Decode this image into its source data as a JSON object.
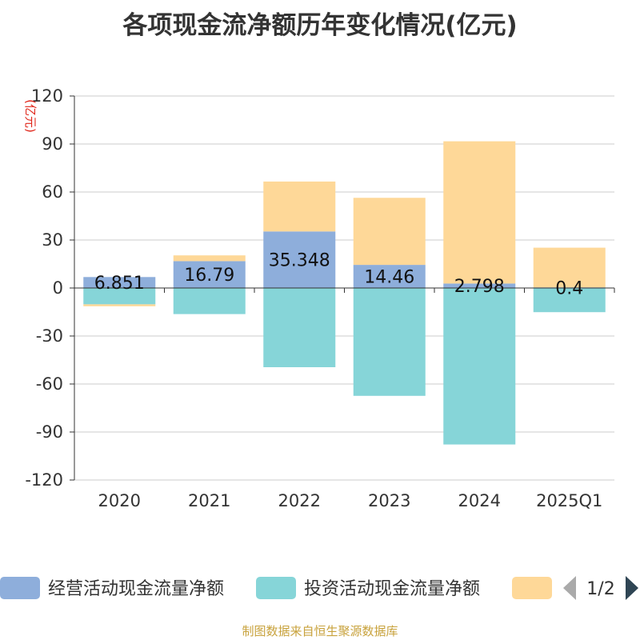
{
  "chart_data": {
    "type": "bar",
    "stacked": true,
    "title": "各项现金流净额历年变化情况(亿元)",
    "ylabel": "(亿元)",
    "ylim": [
      -120,
      120
    ],
    "yticks": [
      120,
      90,
      60,
      30,
      0,
      -30,
      -60,
      -90,
      -120
    ],
    "categories": [
      "2020",
      "2021",
      "2022",
      "2023",
      "2024",
      "2025Q1"
    ],
    "series": [
      {
        "name": "经营活动现金流量净额",
        "color": "#8eaedb",
        "values": [
          6.851,
          16.79,
          35.348,
          14.46,
          2.798,
          0.4
        ],
        "labels": [
          "6.851",
          "16.79",
          "35.348",
          "14.46",
          "2.798",
          "0.4"
        ]
      },
      {
        "name": "投资活动现金流量净额",
        "color": "#86d5d8",
        "values": [
          -10.2,
          -16.3,
          -49.5,
          -67.4,
          -97.8,
          -15.1
        ]
      },
      {
        "name": "",
        "color": "#fed898",
        "values": [
          -1.2,
          3.6,
          31.2,
          41.9,
          88.9,
          24.8
        ]
      }
    ],
    "legend": {
      "page": "1/2",
      "position": "bottom"
    }
  },
  "footer": "制图数据来自恒生聚源数据库"
}
